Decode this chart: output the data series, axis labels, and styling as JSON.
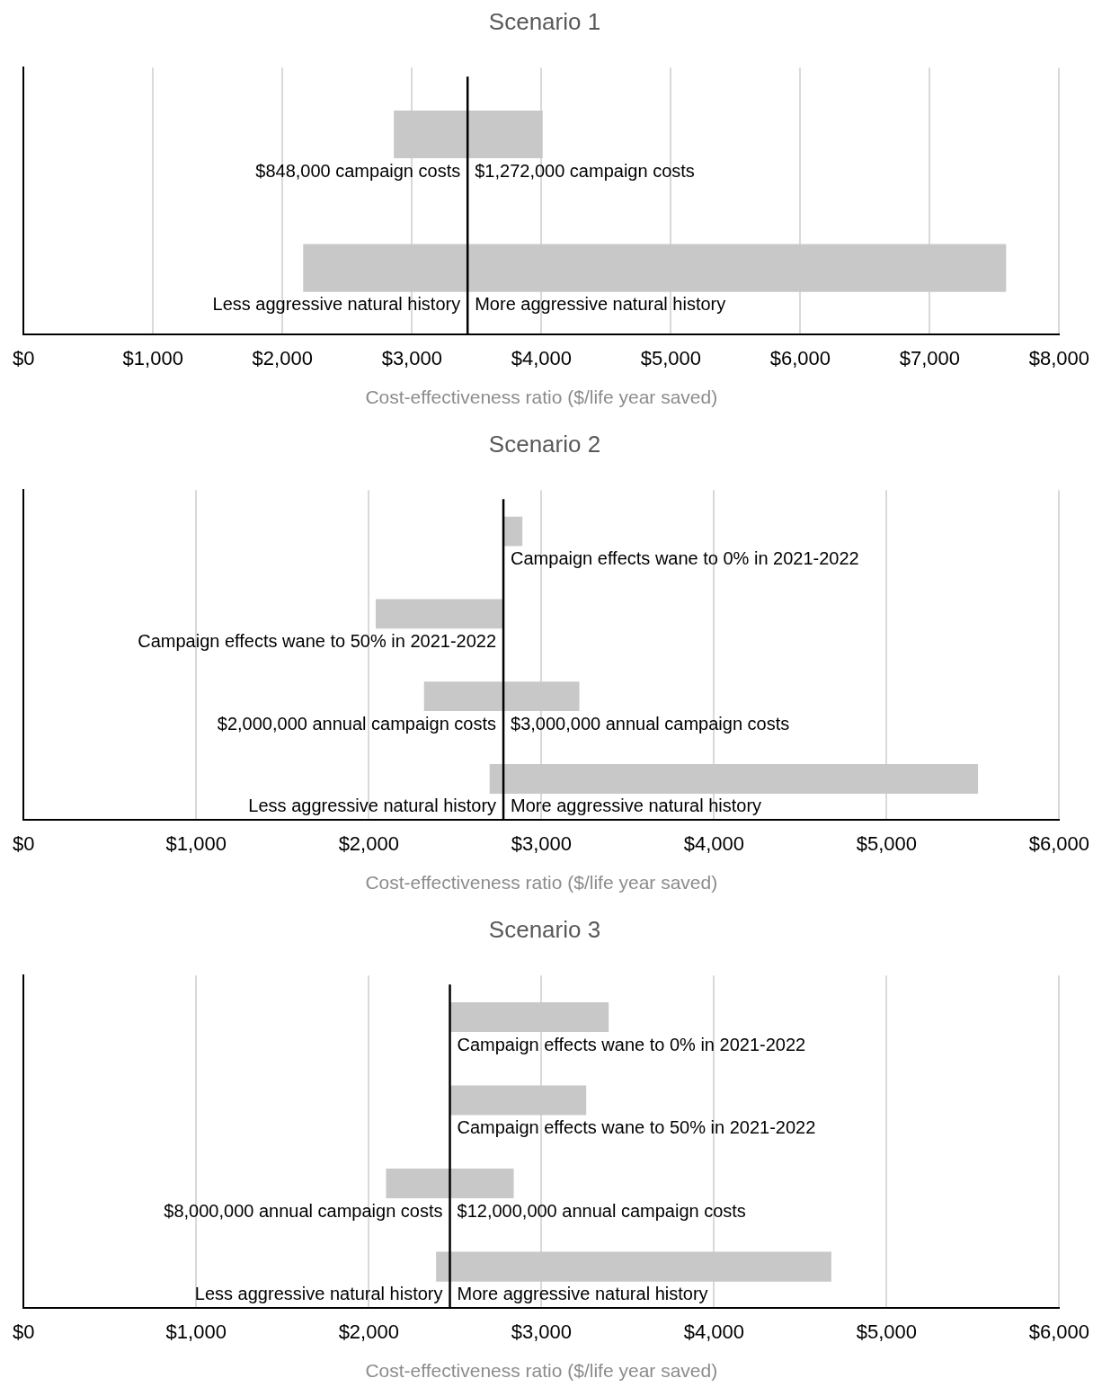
{
  "chart_data": [
    {
      "type": "bar",
      "orientation": "horizontal",
      "title": "Scenario 1",
      "xlabel": "Cost-effectiveness ratio ($/life year saved)",
      "categories": [
        null,
        null
      ],
      "series": [
        {
          "color": "#c8c8c8",
          "base": [
            2860,
            2160
          ],
          "values": [
            1150,
            5430
          ]
        }
      ],
      "annotations": [
        "$848,000 campaign costs",
        "$1,272,000 campaign costs",
        "Less aggressive natural history",
        "More aggressive natural history"
      ],
      "xlim": [
        0,
        8000
      ],
      "xticks": [
        {
          "value": 0,
          "label": "$0"
        },
        {
          "value": 1000,
          "label": "$1,000"
        },
        {
          "value": 2000,
          "label": "$2,000"
        },
        {
          "value": 3000,
          "label": "$3,000"
        },
        {
          "value": 4000,
          "label": "$4,000"
        },
        {
          "value": 5000,
          "label": "$5,000"
        },
        {
          "value": 6000,
          "label": "$6,000"
        },
        {
          "value": 7000,
          "label": "$7,000"
        },
        {
          "value": 8000,
          "label": "$8,000"
        }
      ],
      "ref_lines": [
        {
          "axis": "x",
          "value": 3430,
          "color": "#000000"
        }
      ],
      "grid": "x",
      "legend": false,
      "tick_labels": "x"
    },
    {
      "type": "bar",
      "orientation": "horizontal",
      "title": "Scenario 2",
      "xlabel": "Cost-effectiveness ratio ($/life year saved)",
      "categories": [
        null,
        null,
        null,
        null
      ],
      "series": [
        {
          "color": "#c8c8c8",
          "base": [
            2780,
            2040,
            2320,
            2700
          ],
          "values": [
            110,
            740,
            900,
            2830
          ]
        }
      ],
      "annotations": [
        "Campaign effects wane to 0% in 2021-2022",
        "Campaign effects wane to 50% in 2021-2022",
        "$2,000,000 annual campaign costs",
        "$3,000,000 annual campaign costs",
        "Less aggressive natural history",
        "More aggressive natural history"
      ],
      "xlim": [
        0,
        6000
      ],
      "xticks": [
        {
          "value": 0,
          "label": "$0"
        },
        {
          "value": 1000,
          "label": "$1,000"
        },
        {
          "value": 2000,
          "label": "$2,000"
        },
        {
          "value": 3000,
          "label": "$3,000"
        },
        {
          "value": 4000,
          "label": "$4,000"
        },
        {
          "value": 5000,
          "label": "$5,000"
        },
        {
          "value": 6000,
          "label": "$6,000"
        }
      ],
      "ref_lines": [
        {
          "axis": "x",
          "value": 2780,
          "color": "#000000"
        }
      ],
      "grid": "x",
      "legend": false,
      "tick_labels": "x"
    },
    {
      "type": "bar",
      "orientation": "horizontal",
      "title": "Scenario 3",
      "xlabel": "Cost-effectiveness ratio ($/life year saved)",
      "categories": [
        null,
        null,
        null,
        null
      ],
      "series": [
        {
          "color": "#c8c8c8",
          "base": [
            2470,
            2470,
            2100,
            2390
          ],
          "values": [
            920,
            790,
            740,
            2290
          ]
        }
      ],
      "annotations": [
        "Campaign effects wane to 0% in 2021-2022",
        "Campaign effects wane to 50% in 2021-2022",
        "$8,000,000 annual campaign costs",
        "$12,000,000 annual campaign costs",
        "Less aggressive natural history",
        "More aggressive natural history"
      ],
      "xlim": [
        0,
        6000
      ],
      "xticks": [
        {
          "value": 0,
          "label": "$0"
        },
        {
          "value": 1000,
          "label": "$1,000"
        },
        {
          "value": 2000,
          "label": "$2,000"
        },
        {
          "value": 3000,
          "label": "$3,000"
        },
        {
          "value": 4000,
          "label": "$4,000"
        },
        {
          "value": 5000,
          "label": "$5,000"
        },
        {
          "value": 6000,
          "label": "$6,000"
        }
      ],
      "ref_lines": [
        {
          "axis": "x",
          "value": 2470,
          "color": "#000000"
        }
      ],
      "grid": "x",
      "legend": false,
      "tick_labels": "x"
    }
  ]
}
